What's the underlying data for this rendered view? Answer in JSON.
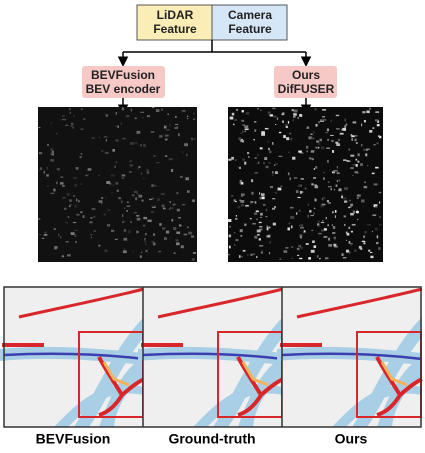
{
  "inputs": {
    "lidar": [
      "LiDAR",
      "Feature"
    ],
    "camera": [
      "Camera",
      "Feature"
    ]
  },
  "encoders": [
    {
      "lines": [
        "BEVFusion",
        "BEV encoder"
      ]
    },
    {
      "lines": [
        "Ours",
        "DifFUSER"
      ]
    }
  ],
  "panels": [
    "BEVFusion",
    "Ground-truth",
    "Ours"
  ]
}
